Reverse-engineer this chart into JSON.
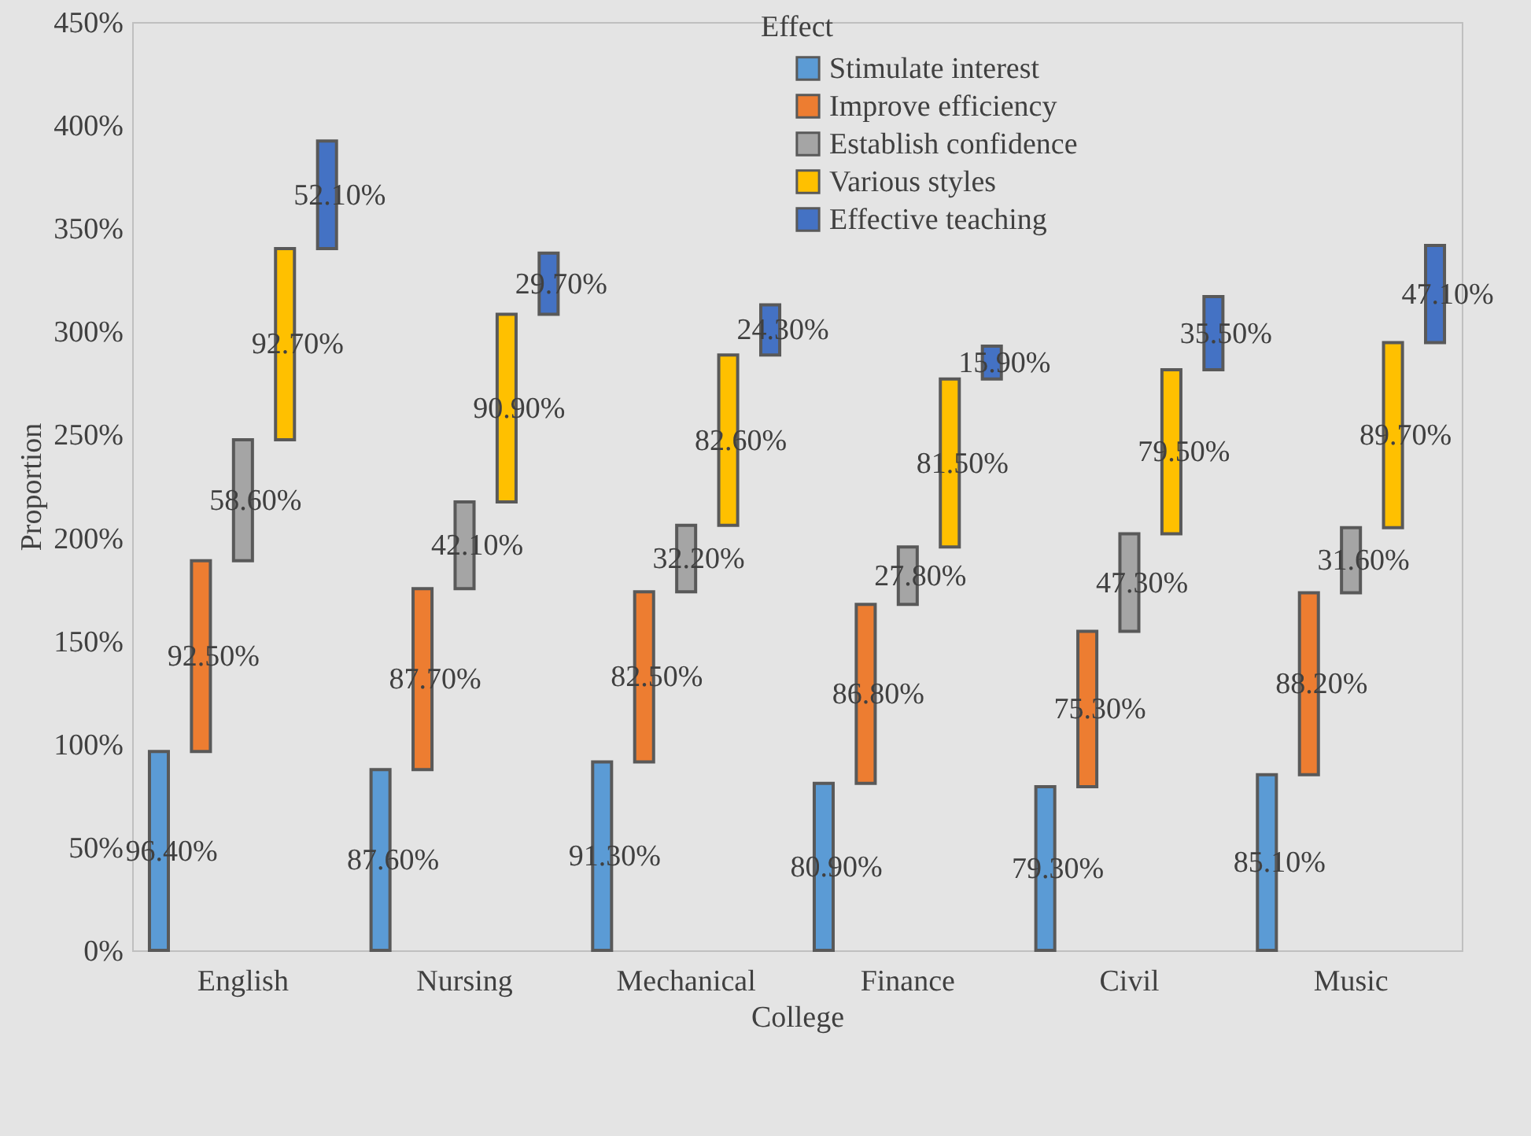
{
  "chart_data": {
    "type": "bar",
    "title": "Effect",
    "xlabel": "College",
    "ylabel": "Proportion",
    "stacked": true,
    "categories": [
      "English",
      "Nursing",
      "Mechanical",
      "Finance",
      "Civil",
      "Music"
    ],
    "series": [
      {
        "name": "Stimulate interest",
        "color": "#5b9bd5",
        "values": [
          96.4,
          87.6,
          91.3,
          80.9,
          79.3,
          85.1
        ],
        "value_labels": [
          "96.40%",
          "87.60%",
          "91.30%",
          "80.90%",
          "79.30%",
          "85.10%"
        ]
      },
      {
        "name": "Improve efficiency",
        "color": "#ed7d31",
        "values": [
          92.5,
          87.7,
          82.5,
          86.8,
          75.3,
          88.2
        ],
        "value_labels": [
          "92.50%",
          "87.70%",
          "82.50%",
          "86.80%",
          "75.30%",
          "88.20%"
        ]
      },
      {
        "name": "Establish confidence",
        "color": "#a5a5a5",
        "values": [
          58.6,
          42.1,
          32.2,
          27.8,
          47.3,
          31.6
        ],
        "value_labels": [
          "58.60%",
          "42.10%",
          "32.20%",
          "27.80%",
          "47.30%",
          "31.60%"
        ]
      },
      {
        "name": "Various styles",
        "color": "#ffc000",
        "values": [
          92.7,
          90.9,
          82.6,
          81.5,
          79.5,
          89.7
        ],
        "value_labels": [
          "92.70%",
          "90.90%",
          "82.60%",
          "81.50%",
          "79.50%",
          "89.70%"
        ]
      },
      {
        "name": "Effective teaching",
        "color": "#4472c4",
        "values": [
          52.1,
          29.7,
          24.3,
          15.9,
          35.5,
          47.1
        ],
        "value_labels": [
          "52.10%",
          "29.70%",
          "24.30%",
          "15.90%",
          "35.50%",
          "47.10%"
        ]
      }
    ],
    "ylim": [
      0,
      450
    ],
    "yticks": [
      {
        "value": 0,
        "label": "0%"
      },
      {
        "value": 50,
        "label": "50%"
      },
      {
        "value": 100,
        "label": "100%"
      },
      {
        "value": 150,
        "label": "150%"
      },
      {
        "value": 200,
        "label": "200%"
      },
      {
        "value": 250,
        "label": "250%"
      },
      {
        "value": 300,
        "label": "300%"
      },
      {
        "value": 350,
        "label": "350%"
      },
      {
        "value": 400,
        "label": "400%"
      },
      {
        "value": 450,
        "label": "450%"
      }
    ],
    "legend": "top right"
  }
}
